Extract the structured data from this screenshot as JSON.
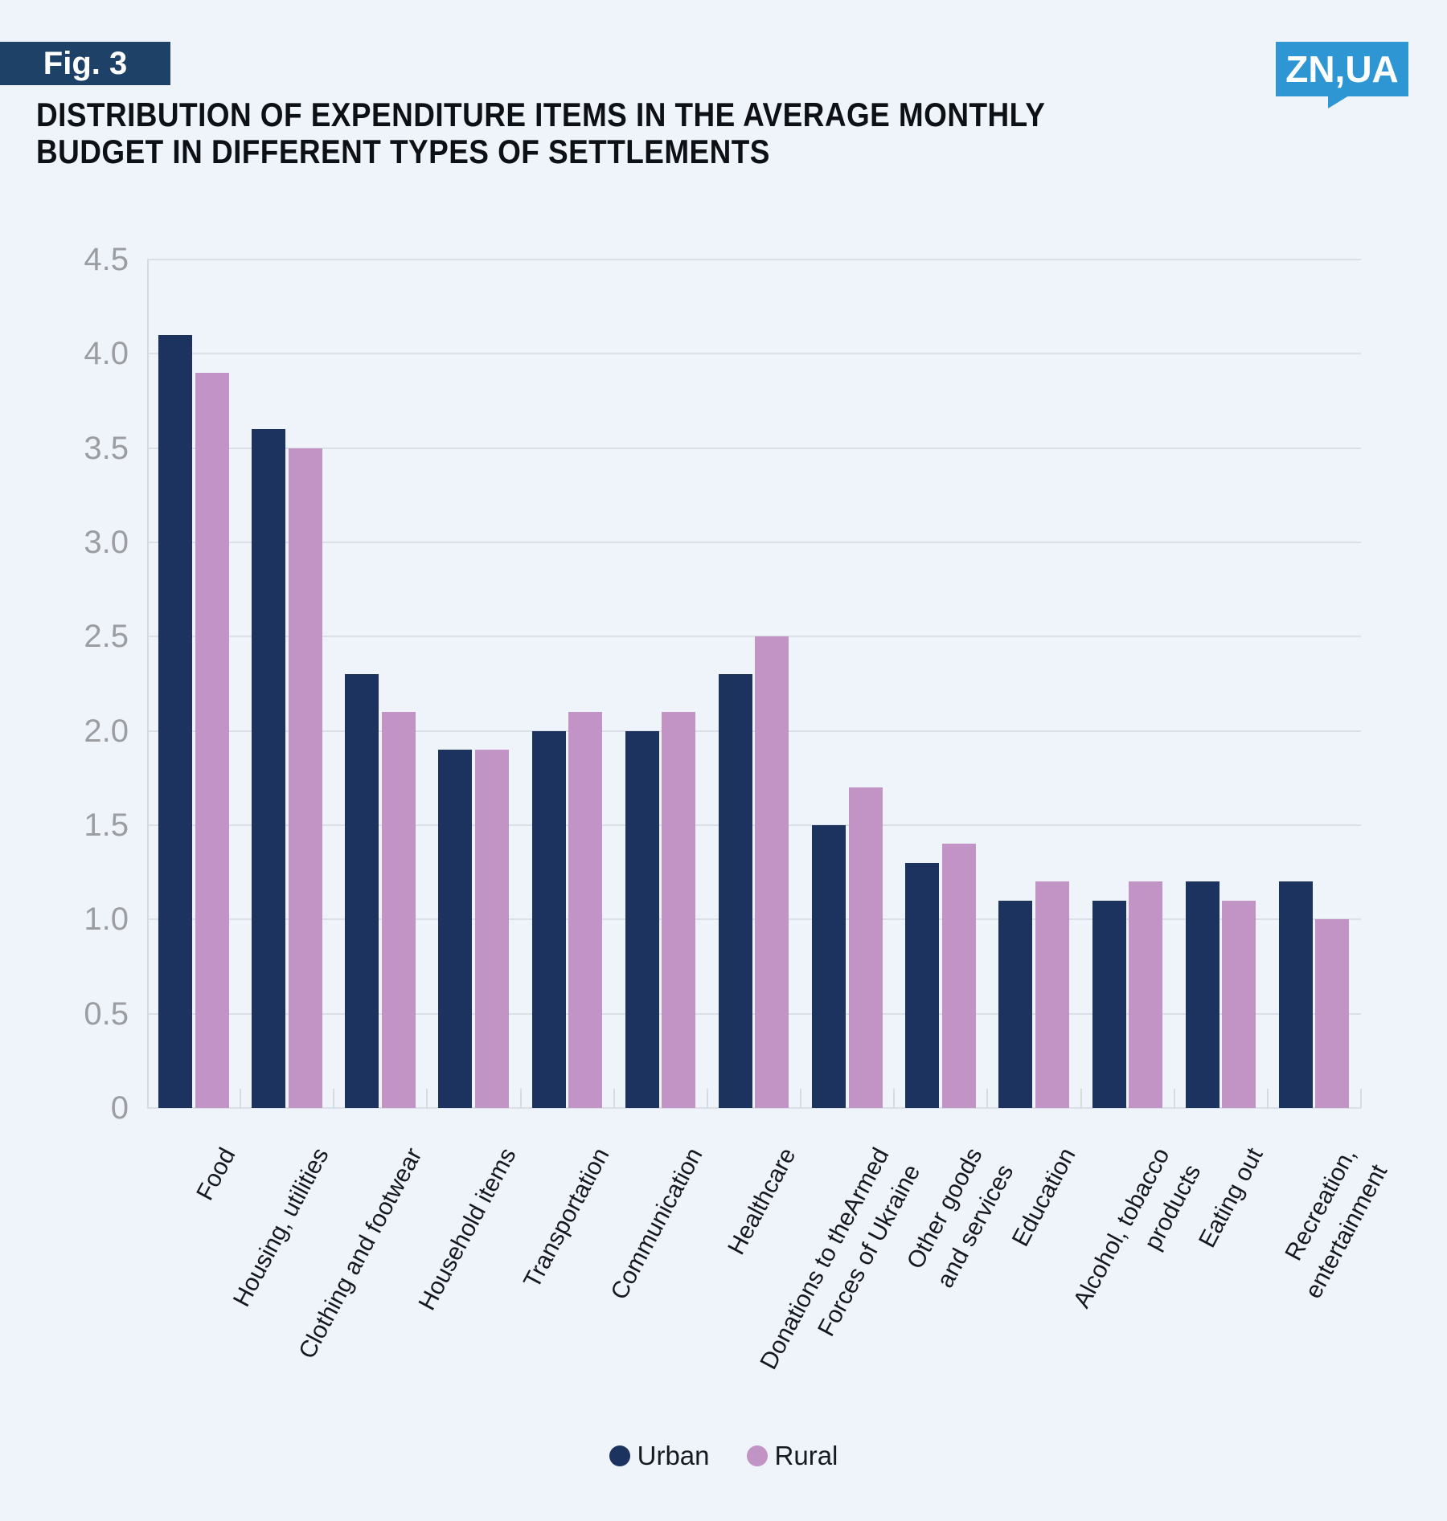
{
  "header": {
    "fig_label": "Fig. 3",
    "logo_text": "ZN,UA"
  },
  "title": {
    "full": "DISTRIBUTION OF EXPENDITURE ITEMS IN THE AVERAGE MONTHLY BUDGET IN DIFFERENT TYPES OF SETTLEMENTS",
    "lines": [
      "DISTRIBUTION OF EXPENDITURE ITEMS IN THE AVERAGE MONTHLY",
      "BUDGET IN DIFFERENT TYPES OF SETTLEMENTS"
    ]
  },
  "colors": {
    "background": "#eff4fb",
    "urban": "#1d335f",
    "rural": "#c293c5",
    "badge_navy": "#1e4168",
    "logo_blue": "#2e96d2",
    "gridline": "#dbe0e8",
    "axis": "#d5dbe3",
    "y_label_gray": "#9b9da1",
    "x_label_dark": "#16181d"
  },
  "chart_data": {
    "type": "bar",
    "title": "Distribution of expenditure items in the average monthly budget in different types of settlements",
    "categories": [
      "Food",
      "Housing, utilities",
      "Clothing and footwear",
      "Household items",
      "Transportation",
      "Communication",
      "Healthcare",
      "Donations to theArmed\nForces of Ukraine",
      "Other goods\nand services",
      "Education",
      "Alcohol, tobacco\nproducts",
      "Eating out",
      "Recreation,\nentertainment"
    ],
    "series": [
      {
        "name": "Urban",
        "color": "#1d335f",
        "values": [
          4.1,
          3.6,
          2.3,
          1.9,
          2.0,
          2.0,
          2.3,
          1.5,
          1.3,
          1.1,
          1.1,
          1.2,
          1.2
        ]
      },
      {
        "name": "Rural",
        "color": "#c293c5",
        "values": [
          3.9,
          3.5,
          2.1,
          1.9,
          2.1,
          2.1,
          2.5,
          1.7,
          1.4,
          1.2,
          1.2,
          1.1,
          1.0
        ]
      }
    ],
    "xlabel": "",
    "ylabel": "",
    "ylim": [
      0,
      4.5
    ],
    "ytick_labels": [
      "0",
      "0.5",
      "1.0",
      "1.5",
      "2.0",
      "2.5",
      "3.0",
      "3.5",
      "4.0",
      "4.5"
    ],
    "grid": true,
    "legend_position": "bottom"
  }
}
